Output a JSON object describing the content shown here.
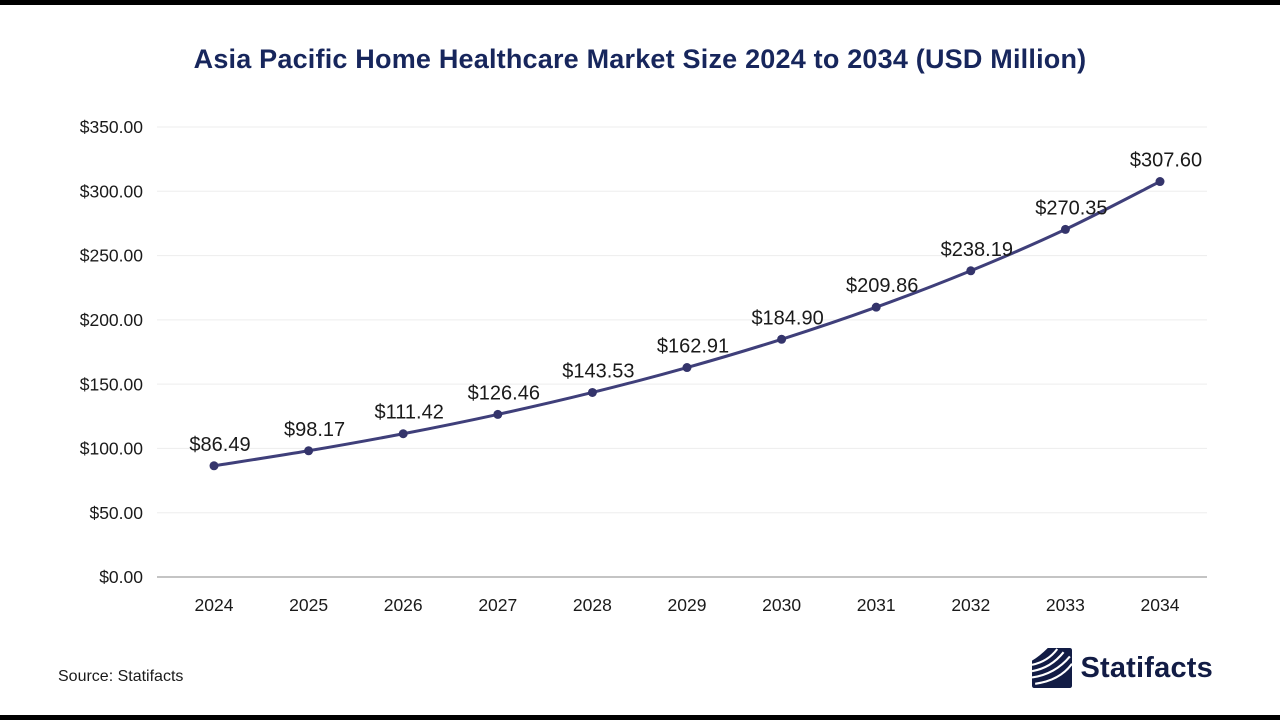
{
  "title": "Asia Pacific Home Healthcare Market Size 2024 to 2034 (USD Million)",
  "source": "Source: Statifacts",
  "logo": {
    "text": "Statifacts",
    "icon": "statifacts-wave-icon"
  },
  "colors": {
    "title": "#17265C",
    "line": "#3F3F7A",
    "marker": "#34346B",
    "grid": "#EDEDED",
    "axis": "#C4C4C4",
    "label": "#1A1A1A",
    "logo_navy": "#121C45",
    "background": "#FFFFFF",
    "frame_bar": "#000000"
  },
  "chart_data": {
    "type": "line",
    "title": "Asia Pacific Home Healthcare Market Size 2024 to 2034 (USD Million)",
    "x": [
      "2024",
      "2025",
      "2026",
      "2027",
      "2028",
      "2029",
      "2030",
      "2031",
      "2032",
      "2033",
      "2034"
    ],
    "values": [
      86.49,
      98.17,
      111.42,
      126.46,
      143.53,
      162.91,
      184.9,
      209.86,
      238.19,
      270.35,
      307.6
    ],
    "data_labels": [
      "$86.49",
      "$98.17",
      "$111.42",
      "$126.46",
      "$143.53",
      "$162.91",
      "$184.90",
      "$209.86",
      "$238.19",
      "$270.35",
      "$307.60"
    ],
    "y_ticks": [
      {
        "value": 0,
        "label": "$0.00"
      },
      {
        "value": 50,
        "label": "$50.00"
      },
      {
        "value": 100,
        "label": "$100.00"
      },
      {
        "value": 150,
        "label": "$150.00"
      },
      {
        "value": 200,
        "label": "$200.00"
      },
      {
        "value": 250,
        "label": "$250.00"
      },
      {
        "value": 300,
        "label": "$300.00"
      },
      {
        "value": 350,
        "label": "$350.00"
      }
    ],
    "ylim": [
      0,
      350
    ],
    "xlabel": "",
    "ylabel": "",
    "grid": true,
    "legend": "none",
    "marker": "circle"
  }
}
